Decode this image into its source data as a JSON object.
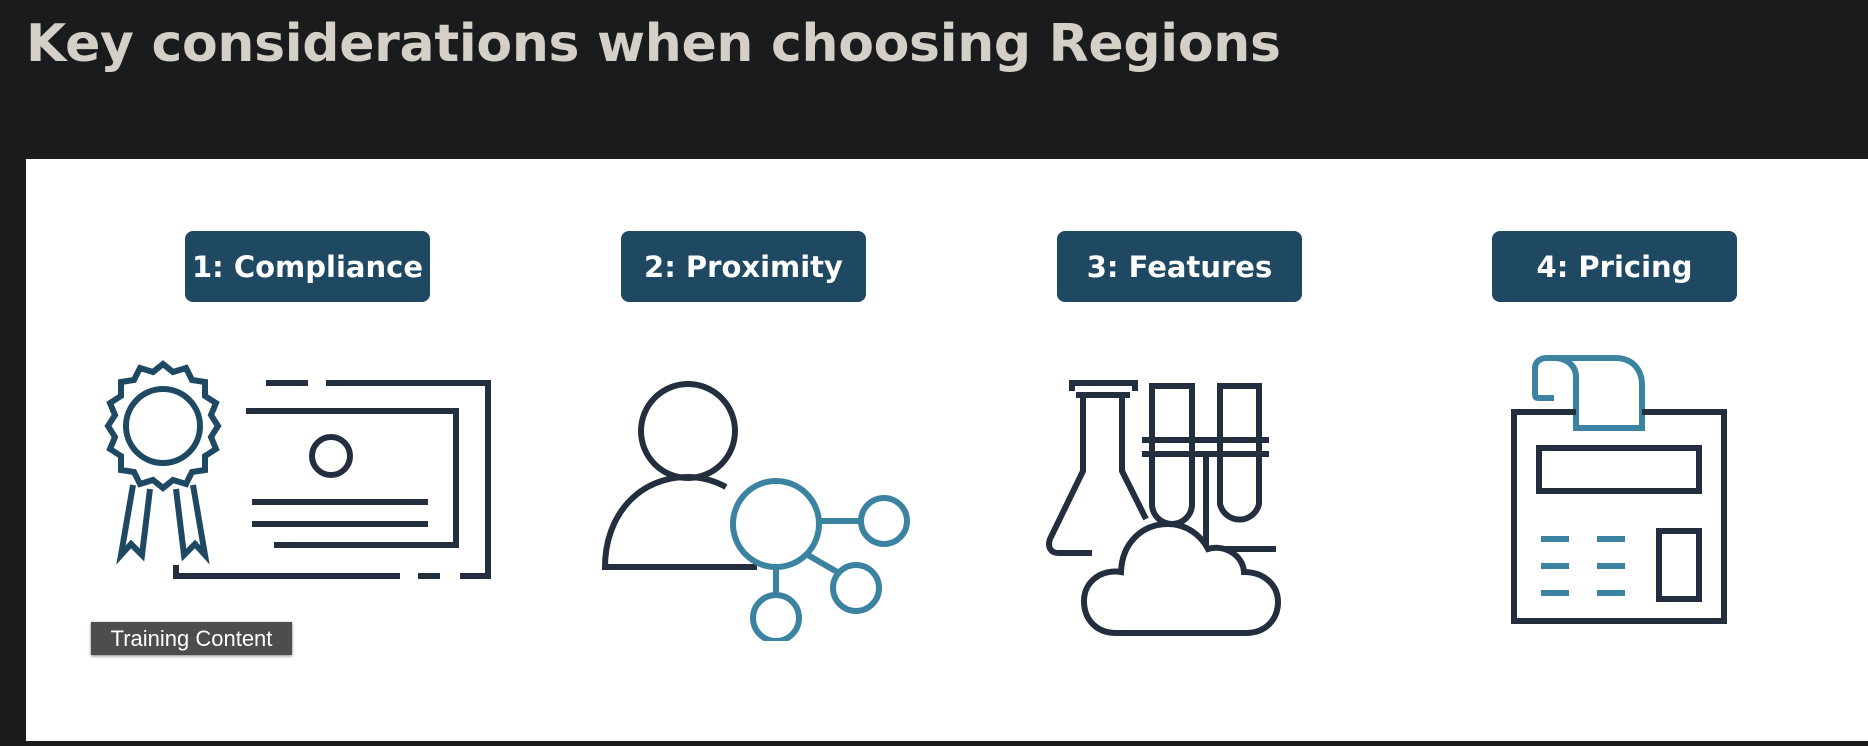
{
  "slide": {
    "title": "Key considerations when choosing Regions"
  },
  "considerations": [
    {
      "label": "1: Compliance",
      "icon": "certificate-icon"
    },
    {
      "label": "2: Proximity",
      "icon": "user-network-icon"
    },
    {
      "label": "3: Features",
      "icon": "lab-cloud-icon"
    },
    {
      "label": "4: Pricing",
      "icon": "calculator-icon"
    }
  ],
  "tooltip": {
    "text": "Training Content"
  },
  "colors": {
    "background": "#1a1b1d",
    "title": "#d4d0c8",
    "label_bg": "#1f4862",
    "icon_dark": "#232f3e",
    "icon_teal": "#3b83a1",
    "tooltip_bg": "#4d4d4d"
  }
}
